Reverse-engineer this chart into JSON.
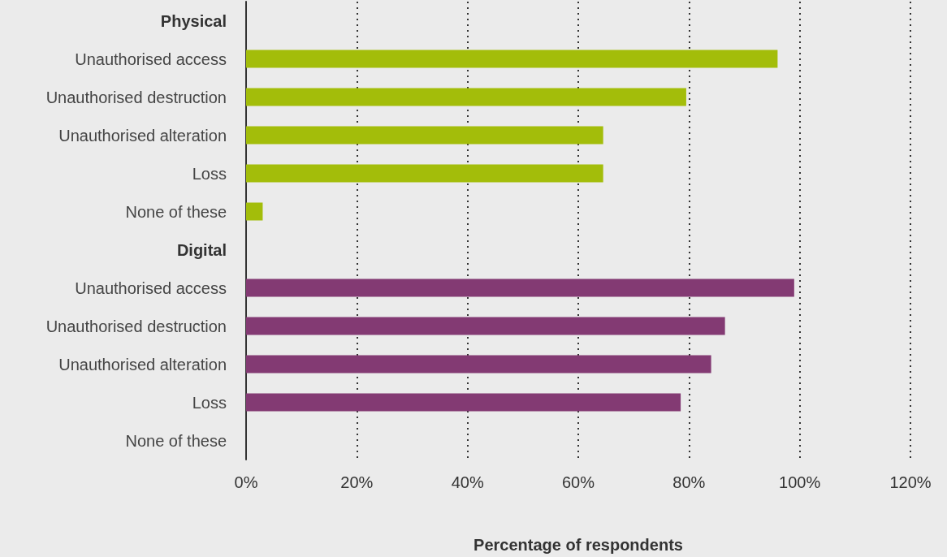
{
  "chart_data": {
    "type": "bar",
    "orientation": "horizontal",
    "xlabel": "Percentage of respondents",
    "categories": [
      "Physical",
      "Unauthorised access",
      "Unauthorised destruction",
      "Unauthorised alteration",
      "Loss",
      "None of these",
      "Digital",
      "Unauthorised access",
      "Unauthorised destruction",
      "Unauthorised alteration",
      "Loss",
      "None of these"
    ],
    "series": [
      {
        "color": "#a3bd0a",
        "values": [
          null,
          96,
          79.5,
          64.5,
          64.5,
          3,
          null,
          null,
          null,
          null,
          null,
          null
        ]
      },
      {
        "color": "#833a73",
        "values": [
          null,
          null,
          null,
          null,
          null,
          null,
          null,
          99,
          86.5,
          84,
          78.5,
          0
        ]
      }
    ],
    "xlim": [
      0,
      120
    ],
    "xticks": [
      {
        "value": 0,
        "label": "0%"
      },
      {
        "value": 20,
        "label": "20%"
      },
      {
        "value": 40,
        "label": "40%"
      },
      {
        "value": 60,
        "label": "60%"
      },
      {
        "value": 80,
        "label": "80%"
      },
      {
        "value": 100,
        "label": "100%"
      },
      {
        "value": 120,
        "label": "120%"
      }
    ],
    "grid": "x"
  }
}
